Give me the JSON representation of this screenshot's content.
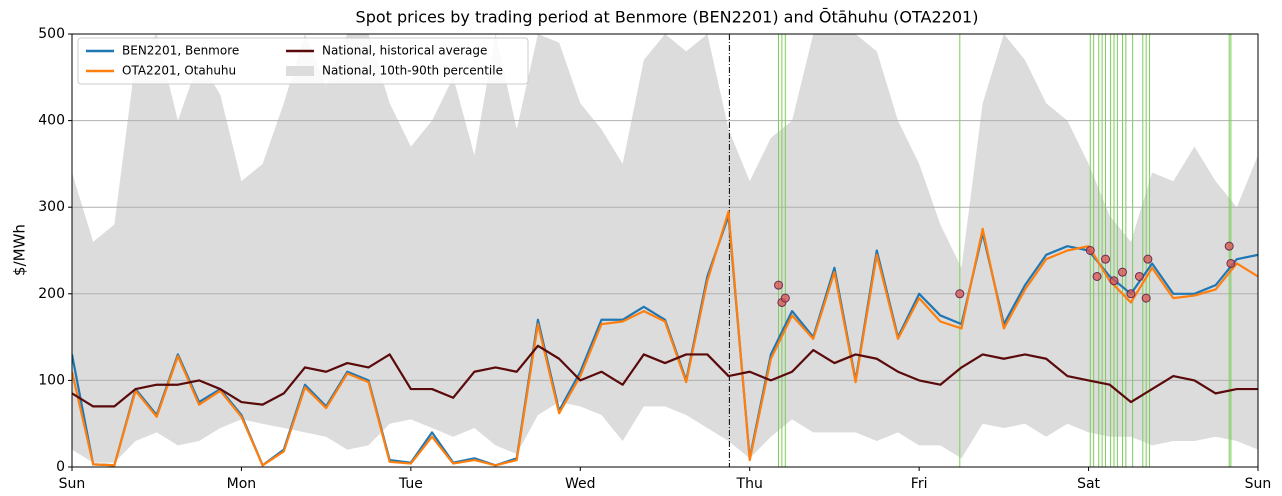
{
  "chart_data": {
    "type": "line",
    "title": "Spot prices by trading period at Benmore (BEN2201) and Ōtāhuhu (OTA2201)",
    "y_label": "$/MWh",
    "xlim": [
      0,
      7
    ],
    "xticks": [
      {
        "value": 0,
        "label": "Sun"
      },
      {
        "value": 1,
        "label": "Mon"
      },
      {
        "value": 2,
        "label": "Tue"
      },
      {
        "value": 3,
        "label": "Wed"
      },
      {
        "value": 4,
        "label": "Thu"
      },
      {
        "value": 5,
        "label": "Fri"
      },
      {
        "value": 6,
        "label": "Sat"
      },
      {
        "value": 7,
        "label": "Sun"
      }
    ],
    "ylim": [
      0,
      500
    ],
    "yticks": [
      0,
      100,
      200,
      300,
      400,
      500
    ],
    "grid": true,
    "legend": "upper left",
    "x": [
      0,
      0.125,
      0.25,
      0.375,
      0.5,
      0.625,
      0.75,
      0.875,
      1,
      1.125,
      1.25,
      1.375,
      1.5,
      1.625,
      1.75,
      1.875,
      2,
      2.125,
      2.25,
      2.375,
      2.5,
      2.625,
      2.75,
      2.875,
      3,
      3.125,
      3.25,
      3.375,
      3.5,
      3.625,
      3.75,
      3.875,
      4,
      4.125,
      4.25,
      4.375,
      4.5,
      4.625,
      4.75,
      4.875,
      5,
      5.125,
      5.25,
      5.375,
      5.5,
      5.625,
      5.75,
      5.875,
      6,
      6.125,
      6.25,
      6.375,
      6.5,
      6.625,
      6.75,
      6.875,
      7
    ],
    "band": {
      "name": "National, 10th-90th percentile",
      "color": "#dcdcdc",
      "lower": [
        20,
        5,
        5,
        30,
        40,
        25,
        30,
        45,
        55,
        50,
        45,
        40,
        35,
        20,
        25,
        50,
        55,
        45,
        35,
        45,
        25,
        15,
        60,
        75,
        70,
        60,
        30,
        70,
        70,
        60,
        45,
        30,
        10,
        35,
        55,
        40,
        40,
        40,
        30,
        40,
        25,
        25,
        10,
        50,
        45,
        50,
        35,
        50,
        40,
        35,
        35,
        25,
        30,
        30,
        35,
        30,
        20
      ],
      "upper": [
        340,
        260,
        280,
        470,
        500,
        400,
        470,
        430,
        330,
        350,
        420,
        500,
        440,
        500,
        500,
        420,
        370,
        400,
        450,
        360,
        500,
        390,
        500,
        490,
        420,
        390,
        350,
        470,
        500,
        480,
        500,
        390,
        330,
        380,
        400,
        500,
        500,
        500,
        480,
        400,
        350,
        280,
        230,
        420,
        500,
        470,
        420,
        400,
        350,
        290,
        260,
        340,
        330,
        370,
        330,
        300,
        360
      ]
    },
    "series": [
      {
        "name": "BEN2201, Benmore",
        "color": "#1f77b4",
        "values": [
          130,
          3,
          2,
          90,
          60,
          130,
          75,
          90,
          60,
          2,
          20,
          95,
          70,
          110,
          100,
          8,
          5,
          40,
          5,
          10,
          2,
          10,
          170,
          65,
          110,
          170,
          170,
          185,
          170,
          100,
          220,
          290,
          10,
          130,
          180,
          150,
          230,
          100,
          250,
          150,
          200,
          175,
          165,
          270,
          165,
          210,
          245,
          255,
          250,
          220,
          200,
          235,
          200,
          200,
          210,
          240,
          245
        ]
      },
      {
        "name": "OTA2201, Otahuhu",
        "color": "#ff7f0e",
        "values": [
          110,
          3,
          2,
          88,
          58,
          128,
          72,
          88,
          58,
          2,
          18,
          92,
          68,
          108,
          98,
          6,
          4,
          35,
          4,
          8,
          2,
          8,
          165,
          62,
          105,
          165,
          168,
          180,
          168,
          98,
          215,
          295,
          8,
          125,
          175,
          148,
          225,
          98,
          245,
          148,
          195,
          168,
          160,
          275,
          160,
          205,
          240,
          250,
          255,
          215,
          190,
          230,
          195,
          198,
          205,
          235,
          220
        ]
      },
      {
        "name": "National, historical average",
        "color": "#5a0a0a",
        "values": [
          85,
          70,
          70,
          90,
          95,
          95,
          100,
          90,
          75,
          72,
          85,
          115,
          110,
          120,
          115,
          130,
          90,
          90,
          80,
          110,
          115,
          110,
          140,
          125,
          100,
          110,
          95,
          130,
          120,
          130,
          130,
          105,
          110,
          100,
          110,
          135,
          120,
          130,
          125,
          110,
          100,
          95,
          115,
          130,
          125,
          130,
          125,
          105,
          100,
          95,
          75,
          90,
          105,
          100,
          85,
          90,
          90
        ]
      }
    ],
    "event_line": 3.88,
    "highlight_color": "#7ccd5a",
    "highlight_x": [
      4.17,
      4.19,
      4.21,
      5.24,
      6.01,
      6.03,
      6.06,
      6.08,
      6.1,
      6.13,
      6.15,
      6.17,
      6.2,
      6.22,
      6.26,
      6.32,
      6.34,
      6.36,
      6.83,
      6.84
    ],
    "markers": {
      "color": "#d9534f",
      "x": [
        4.17,
        4.19,
        4.21,
        5.24,
        6.01,
        6.05,
        6.1,
        6.15,
        6.2,
        6.25,
        6.3,
        6.34,
        6.35,
        6.83,
        6.84
      ],
      "values": [
        210,
        190,
        195,
        200,
        250,
        220,
        240,
        215,
        225,
        200,
        220,
        195,
        240,
        255,
        235
      ]
    }
  }
}
